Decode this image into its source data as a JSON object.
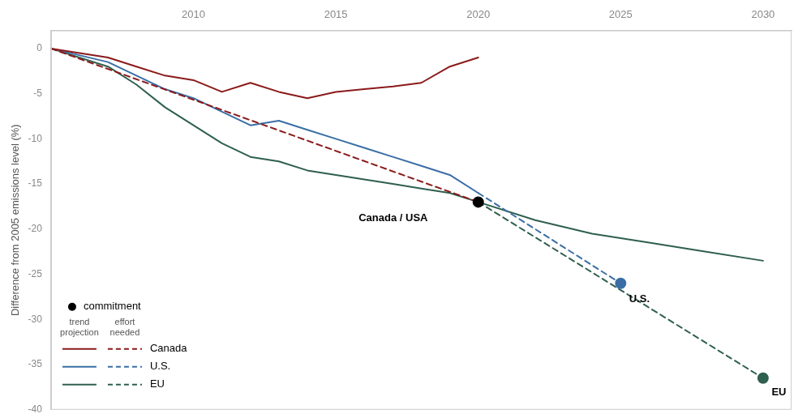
{
  "chart_data": {
    "type": "line",
    "ylabel": "Difference from 2005 emissions level (%)",
    "xlim": [
      2005,
      2031
    ],
    "xticks": [
      2010,
      2015,
      2020,
      2025,
      2030
    ],
    "ylim": [
      -40,
      2
    ],
    "yticks": [
      0,
      -5,
      -10,
      -15,
      -20,
      -25,
      -30,
      -35,
      -40
    ],
    "grid": false,
    "legend": "lower left",
    "legend_headers": {
      "solid": "trend\nprojection",
      "dashed": "effort\nneeded"
    },
    "series": [
      {
        "name": "Canada",
        "color": "#8B1A1A",
        "line_style": "solid",
        "x": [
          2005,
          2007,
          2008,
          2009,
          2010,
          2011,
          2012,
          2013,
          2014,
          2015,
          2016,
          2017,
          2018,
          2019,
          2020
        ],
        "values": [
          0,
          -1.0,
          -2.0,
          -3.0,
          -3.5,
          -4.8,
          -3.8,
          -4.8,
          -5.5,
          -4.8,
          -4.5,
          -4.2,
          -3.8,
          -2.0,
          -1.0
        ]
      },
      {
        "name": "Canada",
        "color": "#8B1A1A",
        "line_style": "dashed",
        "x": [
          2005,
          2020
        ],
        "values": [
          0,
          -17.0
        ]
      },
      {
        "name": "U.S.",
        "color": "#3A6EA5",
        "line_style": "solid",
        "x": [
          2005,
          2007,
          2008,
          2009,
          2010,
          2011,
          2012,
          2013,
          2014,
          2015,
          2016,
          2017,
          2018,
          2019,
          2020
        ],
        "values": [
          0,
          -1.5,
          -3.0,
          -4.5,
          -5.5,
          -7.0,
          -8.5,
          -8.0,
          -9.0,
          -10.0,
          -11.0,
          -12.0,
          -13.0,
          -14.0,
          -16.0
        ]
      },
      {
        "name": "U.S.",
        "color": "#3A6EA5",
        "line_style": "dashed",
        "x": [
          2020,
          2025
        ],
        "values": [
          -16.0,
          -26.0
        ]
      },
      {
        "name": "EU",
        "color": "#2F5F4F",
        "line_style": "solid",
        "x": [
          2005,
          2007,
          2008,
          2009,
          2010,
          2011,
          2012,
          2013,
          2014,
          2015,
          2016,
          2017,
          2018,
          2019,
          2020,
          2022,
          2024,
          2026,
          2028,
          2030
        ],
        "values": [
          0,
          -2.0,
          -4.0,
          -6.5,
          -8.5,
          -10.5,
          -12.0,
          -12.5,
          -13.5,
          -14.0,
          -14.5,
          -15.0,
          -15.5,
          -16.0,
          -17.0,
          -19.0,
          -20.5,
          -21.5,
          -22.5,
          -23.5
        ]
      },
      {
        "name": "EU",
        "color": "#2F5F4F",
        "line_style": "dashed",
        "x": [
          2020,
          2030
        ],
        "values": [
          -17.0,
          -36.5
        ]
      },
      {
        "name": "commitment",
        "type": "scatter",
        "marker": "circle",
        "colors": [
          "#000000",
          "#3A6EA5",
          "#2F5F4F"
        ],
        "x": [
          2020,
          2025,
          2030
        ],
        "values": [
          -17.0,
          -26.0,
          -36.5
        ]
      }
    ],
    "annotations": [
      {
        "text": "Canada / USA",
        "x": 2015.8,
        "y": -18.2
      },
      {
        "text": "U.S.",
        "x": 2025.3,
        "y": -27.2
      },
      {
        "text": "EU",
        "x": 2030.3,
        "y": -37.5
      }
    ]
  }
}
